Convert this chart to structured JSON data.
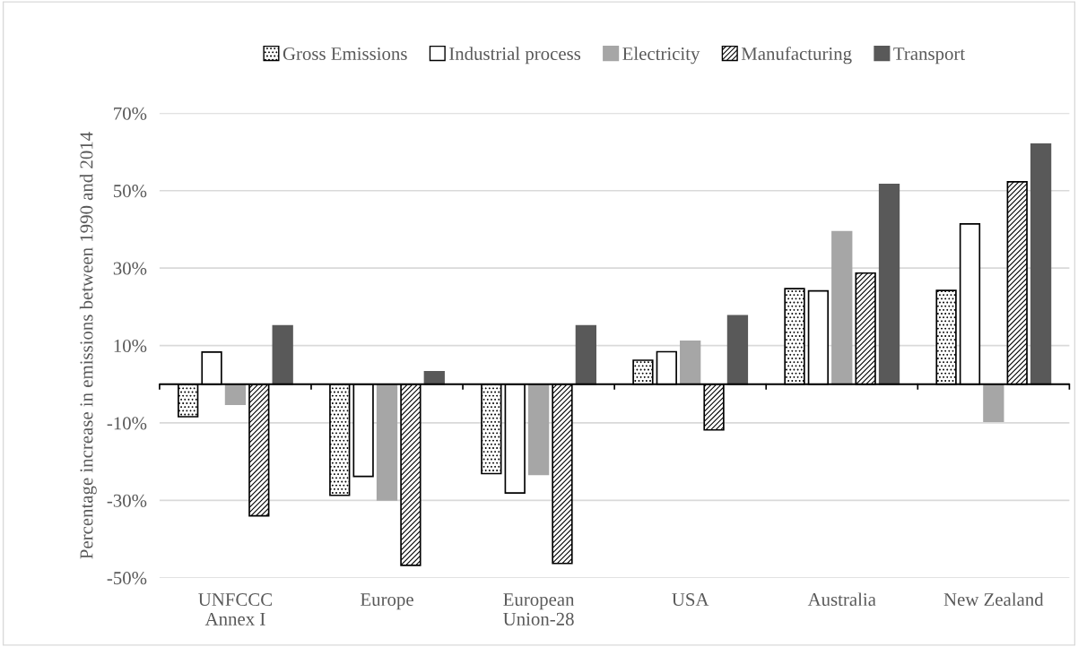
{
  "chart_data": {
    "type": "bar",
    "ylabel": "Percentage increase in emissions between 1990 and 2014",
    "categories": [
      "UNFCCC\nAnnex I",
      "Europe",
      "European\nUnion-28",
      "USA",
      "Australia",
      "New Zealand"
    ],
    "series": [
      {
        "name": "Gross Emissions",
        "color": "#000000",
        "values": [
          -8.4,
          -28.7,
          -23.1,
          6.2,
          24.7,
          24.2
        ]
      },
      {
        "name": "Industrial process",
        "color": "#ffffff",
        "values": [
          8.3,
          -23.8,
          -28.1,
          8.4,
          24.1,
          41.4
        ]
      },
      {
        "name": "Electricity",
        "color": "#a6a6a6",
        "values": [
          -5.2,
          -29.9,
          -23.3,
          11.1,
          39.4,
          -9.6
        ]
      },
      {
        "name": "Manufacturing",
        "color": "#000000",
        "values": [
          -34.0,
          -46.8,
          -46.3,
          -11.8,
          28.7,
          52.3
        ]
      },
      {
        "name": "Transport",
        "color": "#595959",
        "values": [
          15.1,
          3.2,
          15.1,
          17.7,
          51.6,
          62.0
        ]
      }
    ],
    "ylim": [
      -50,
      70
    ],
    "yticks": [
      {
        "value": -50,
        "label": "-50%"
      },
      {
        "value": -30,
        "label": "-30%"
      },
      {
        "value": -10,
        "label": "-10%"
      },
      {
        "value": 10,
        "label": "10%"
      },
      {
        "value": 30,
        "label": "30%"
      },
      {
        "value": 50,
        "label": "50%"
      },
      {
        "value": 70,
        "label": "70%"
      }
    ],
    "grid": "y",
    "legend": "top"
  }
}
